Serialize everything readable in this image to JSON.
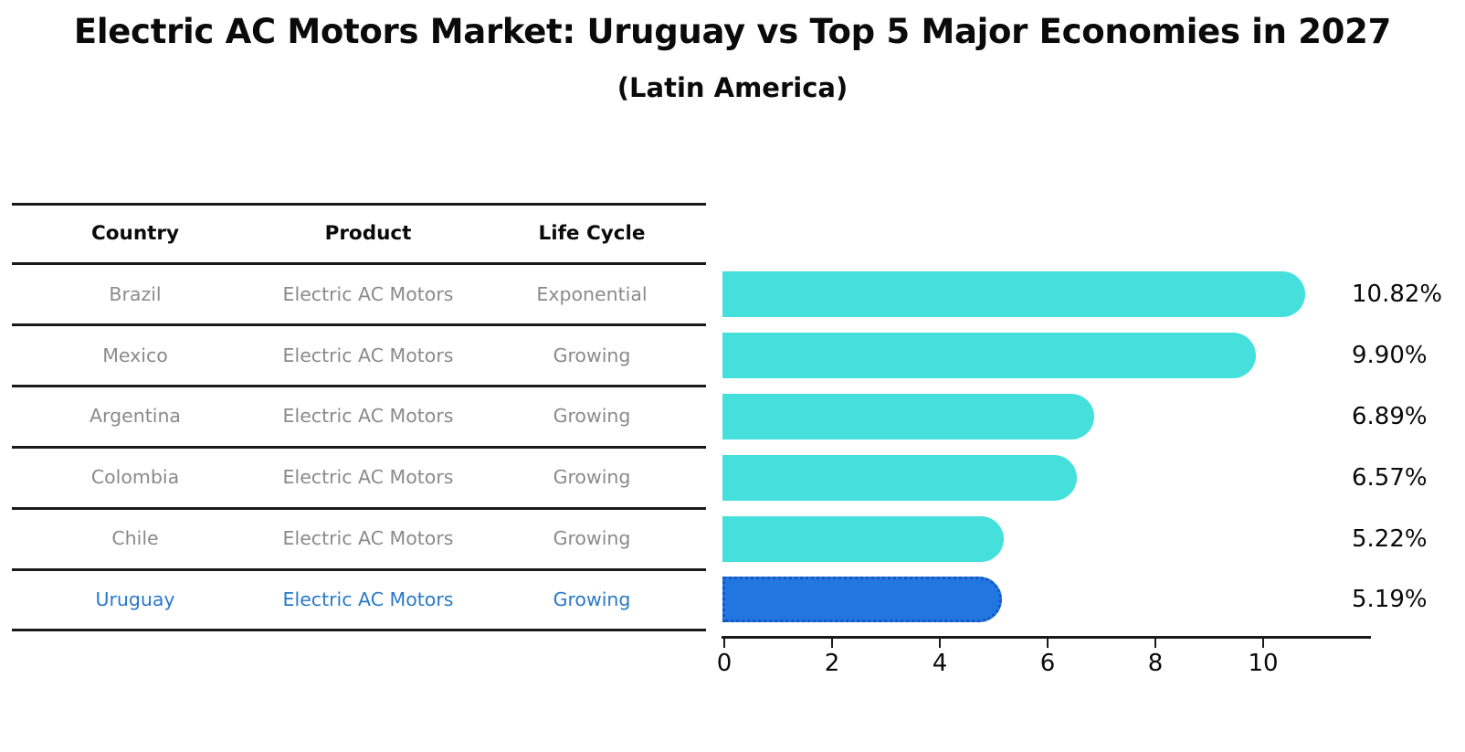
{
  "header": {
    "title": "Electric AC Motors Market: Uruguay vs Top 5 Major Economies in 2027",
    "subtitle": "(Latin America)"
  },
  "table": {
    "headers": {
      "country": "Country",
      "product": "Product",
      "life_cycle": "Life Cycle"
    },
    "rows": [
      {
        "country": "Brazil",
        "product": "Electric AC Motors",
        "life_cycle": "Exponential",
        "highlighted": false
      },
      {
        "country": "Mexico",
        "product": "Electric AC Motors",
        "life_cycle": "Growing",
        "highlighted": false
      },
      {
        "country": "Argentina",
        "product": "Electric AC Motors",
        "life_cycle": "Growing",
        "highlighted": false
      },
      {
        "country": "Colombia",
        "product": "Electric AC Motors",
        "life_cycle": "Growing",
        "highlighted": false
      },
      {
        "country": "Chile",
        "product": "Electric AC Motors",
        "life_cycle": "Growing",
        "highlighted": false
      },
      {
        "country": "Uruguay",
        "product": "Electric AC Motors",
        "life_cycle": "Growing",
        "highlighted": true
      }
    ],
    "colors": {
      "row_text": "#8a8a8a",
      "header_text": "#0a0a0a",
      "highlight_text": "#2979C9",
      "line": "#1a1a1a"
    }
  },
  "chart_data": {
    "type": "bar",
    "orientation": "horizontal",
    "title": "Electric AC Motors Market: Uruguay vs Top 5 Major Economies in 2027",
    "subtitle": "(Latin America)",
    "categories": [
      "Brazil",
      "Mexico",
      "Argentina",
      "Colombia",
      "Chile",
      "Uruguay"
    ],
    "values": [
      10.82,
      9.9,
      6.89,
      6.57,
      5.22,
      5.19
    ],
    "value_labels": [
      "10.82%",
      "9.90%",
      "6.89%",
      "6.57%",
      "5.22%",
      "5.19%"
    ],
    "highlight_index": 5,
    "xlabel": "",
    "ylabel": "",
    "xlim": [
      0,
      11.9
    ],
    "x_ticks": [
      0,
      2,
      4,
      6,
      8,
      10
    ],
    "x_tick_labels": [
      "0",
      "2",
      "4",
      "6",
      "8",
      "10"
    ],
    "grid": false,
    "legend": false,
    "colors": {
      "bar": "#45E0DC",
      "highlight_bar": "#2276E0",
      "highlight_border": "#1356C6",
      "axis": "#1a1a1a",
      "value_label_text": "#0a0a0a"
    }
  }
}
